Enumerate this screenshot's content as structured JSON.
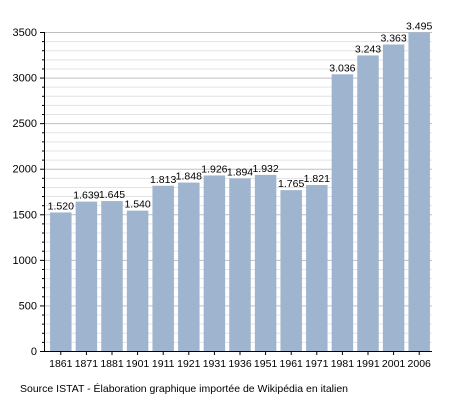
{
  "chart_data": {
    "type": "bar",
    "categories": [
      "1861",
      "1871",
      "1881",
      "1901",
      "1911",
      "1921",
      "1931",
      "1936",
      "1951",
      "1961",
      "1971",
      "1981",
      "1991",
      "2001",
      "2006"
    ],
    "values": [
      1520,
      1639,
      1645,
      1540,
      1813,
      1848,
      1926,
      1894,
      1932,
      1765,
      1821,
      3036,
      3243,
      3363,
      3495
    ],
    "value_labels": [
      "1.520",
      "1.639",
      "1.645",
      "1.540",
      "1.813",
      "1.848",
      "1.926",
      "1.894",
      "1.932",
      "1.765",
      "1.821",
      "3.036",
      "3.243",
      "3.363",
      "3.495"
    ],
    "y_ticks": [
      0,
      500,
      1000,
      1500,
      2000,
      2500,
      3000,
      3500
    ],
    "ylim": [
      0,
      3500
    ],
    "title": "",
    "xlabel": "",
    "ylabel": "",
    "grid": true,
    "bar_color": "#9fb4cf",
    "grid_color": "#bfbfbf"
  },
  "source_note": "Source ISTAT - Élaboration graphique importée de Wikipédia en italien"
}
